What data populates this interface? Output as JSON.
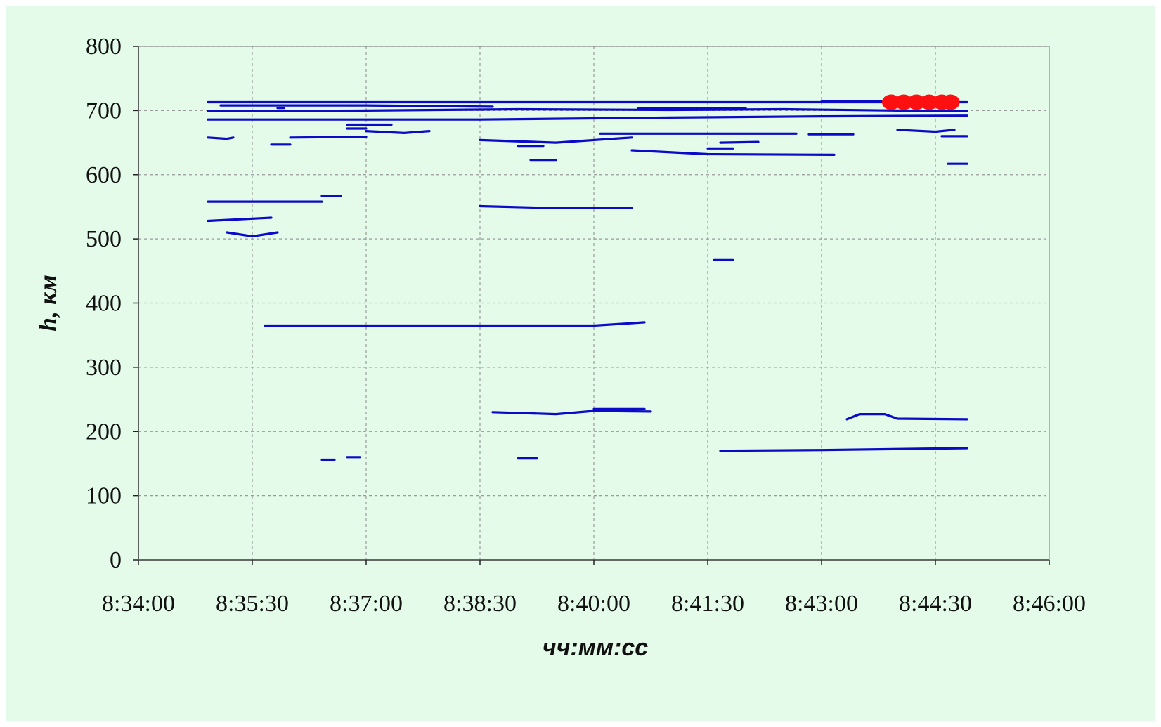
{
  "chart_data": {
    "type": "scatter",
    "title": "",
    "xlabel": "чч:мм:сс",
    "ylabel": "h, км",
    "x_ticks": [
      "8:34:00",
      "8:35:30",
      "8:37:00",
      "8:38:30",
      "8:40:00",
      "8:41:30",
      "8:43:00",
      "8:44:30",
      "8:46:00"
    ],
    "y_ticks": [
      "0",
      "100",
      "200",
      "300",
      "400",
      "500",
      "600",
      "700",
      "800"
    ],
    "xlim": [
      "8:34:00",
      "8:46:00"
    ],
    "ylim": [
      0,
      800
    ],
    "grid": true,
    "colors": {
      "background": "#e3fbe8",
      "series": "#0a0ac8",
      "highlight": "#ff1010",
      "grid": "#9a9a9a",
      "axis": "#222222"
    },
    "series": [
      {
        "color": "#0a0ac8",
        "traces": [
          [
            [
              "8:34:55",
              713
            ],
            [
              "8:44:55",
              713
            ]
          ],
          [
            [
              "8:34:55",
              699
            ],
            [
              "8:37:00",
              700
            ],
            [
              "8:39:00",
              702
            ],
            [
              "8:41:00",
              701
            ],
            [
              "8:42:30",
              702
            ],
            [
              "8:44:00",
              700
            ],
            [
              "8:44:55",
              699
            ]
          ],
          [
            [
              "8:34:55",
              686
            ],
            [
              "8:38:30",
              686
            ],
            [
              "8:41:00",
              689
            ],
            [
              "8:43:00",
              691
            ],
            [
              "8:44:55",
              692
            ]
          ],
          [
            [
              "8:35:05",
              708
            ],
            [
              "8:37:00",
              708
            ],
            [
              "8:38:40",
              706
            ]
          ],
          [
            [
              "8:35:50",
              704
            ],
            [
              "8:35:55",
              704
            ]
          ],
          [
            [
              "8:36:45",
              678
            ],
            [
              "8:37:20",
              678
            ]
          ],
          [
            [
              "8:36:45",
              672
            ],
            [
              "8:37:00",
              672
            ]
          ],
          [
            [
              "8:36:00",
              658
            ],
            [
              "8:37:00",
              659
            ]
          ],
          [
            [
              "8:37:00",
              668
            ],
            [
              "8:37:30",
              665
            ],
            [
              "8:37:50",
              668
            ]
          ],
          [
            [
              "8:34:55",
              658
            ],
            [
              "8:35:10",
              656
            ],
            [
              "8:35:15",
              658
            ]
          ],
          [
            [
              "8:35:45",
              647
            ],
            [
              "8:36:00",
              647
            ]
          ],
          [
            [
              "8:38:30",
              654
            ],
            [
              "8:39:30",
              650
            ],
            [
              "8:40:30",
              658
            ]
          ],
          [
            [
              "8:39:00",
              645
            ],
            [
              "8:39:20",
              645
            ]
          ],
          [
            [
              "8:39:10",
              623
            ],
            [
              "8:39:30",
              623
            ]
          ],
          [
            [
              "8:40:05",
              664
            ],
            [
              "8:42:40",
              664
            ]
          ],
          [
            [
              "8:40:30",
              638
            ],
            [
              "8:41:30",
              632
            ],
            [
              "8:43:10",
              631
            ]
          ],
          [
            [
              "8:41:30",
              641
            ],
            [
              "8:41:50",
              641
            ]
          ],
          [
            [
              "8:41:40",
              650
            ],
            [
              "8:42:10",
              651
            ]
          ],
          [
            [
              "8:42:50",
              663
            ],
            [
              "8:43:25",
              663
            ]
          ],
          [
            [
              "8:40:35",
              704
            ],
            [
              "8:42:00",
              704
            ]
          ],
          [
            [
              "8:43:00",
              714
            ],
            [
              "8:44:00",
              714
            ]
          ],
          [
            [
              "8:44:00",
              670
            ],
            [
              "8:44:30",
              667
            ],
            [
              "8:44:45",
              670
            ]
          ],
          [
            [
              "8:44:35",
              660
            ],
            [
              "8:44:55",
              660
            ]
          ],
          [
            [
              "8:44:40",
              617
            ],
            [
              "8:44:55",
              617
            ]
          ],
          [
            [
              "8:34:55",
              558
            ],
            [
              "8:36:25",
              558
            ]
          ],
          [
            [
              "8:36:25",
              567
            ],
            [
              "8:36:40",
              567
            ]
          ],
          [
            [
              "8:34:55",
              528
            ],
            [
              "8:35:45",
              533
            ]
          ],
          [
            [
              "8:35:10",
              510
            ],
            [
              "8:35:30",
              504
            ],
            [
              "8:35:50",
              510
            ]
          ],
          [
            [
              "8:38:30",
              551
            ],
            [
              "8:39:30",
              548
            ],
            [
              "8:40:30",
              548
            ]
          ],
          [
            [
              "8:41:35",
              467
            ],
            [
              "8:41:50",
              467
            ]
          ],
          [
            [
              "8:35:40",
              365
            ],
            [
              "8:40:00",
              365
            ],
            [
              "8:40:25",
              368
            ],
            [
              "8:40:40",
              370
            ]
          ],
          [
            [
              "8:38:40",
              230
            ],
            [
              "8:39:30",
              227
            ],
            [
              "8:40:00",
              232
            ],
            [
              "8:40:45",
              231
            ]
          ],
          [
            [
              "8:40:00",
              235
            ],
            [
              "8:40:40",
              235
            ]
          ],
          [
            [
              "8:36:25",
              156
            ],
            [
              "8:36:35",
              156
            ]
          ],
          [
            [
              "8:36:45",
              160
            ],
            [
              "8:36:55",
              160
            ]
          ],
          [
            [
              "8:39:00",
              158
            ],
            [
              "8:39:15",
              158
            ]
          ],
          [
            [
              "8:41:40",
              170
            ],
            [
              "8:43:00",
              171
            ],
            [
              "8:44:55",
              174
            ]
          ],
          [
            [
              "8:43:20",
              219
            ],
            [
              "8:43:30",
              227
            ],
            [
              "8:43:50",
              227
            ],
            [
              "8:44:00",
              220
            ],
            [
              "8:44:55",
              219
            ]
          ]
        ]
      },
      {
        "color": "#ff1010",
        "points": [
          [
            "8:43:55",
            713
          ],
          [
            "8:44:05",
            713
          ],
          [
            "8:44:15",
            713
          ],
          [
            "8:44:25",
            713
          ],
          [
            "8:44:35",
            713
          ],
          [
            "8:44:42",
            713
          ]
        ]
      }
    ]
  }
}
